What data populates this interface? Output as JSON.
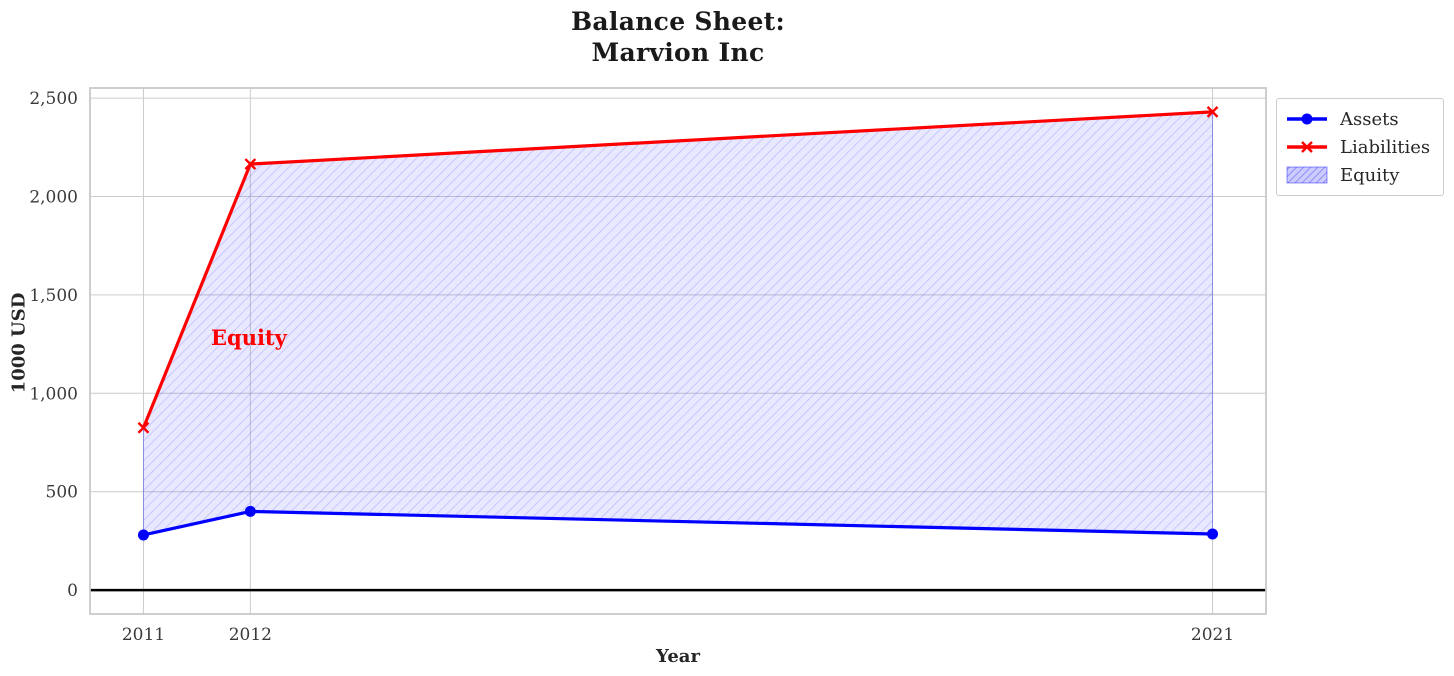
{
  "figure": {
    "title_lines": [
      "Balance Sheet:",
      "Marvion Inc"
    ]
  },
  "annotation": {
    "text": "Equity",
    "color": "#ff0000"
  },
  "chart_data": {
    "type": "line",
    "title": "Balance Sheet: Marvion Inc",
    "xlabel": "Year",
    "ylabel": "1000 USD",
    "x": [
      2011,
      2012,
      2021
    ],
    "x_tick_labels": [
      "2011",
      "2012",
      "2021"
    ],
    "y_ticks": [
      0,
      500,
      1000,
      1500,
      2000,
      2500
    ],
    "y_tick_labels": [
      "0",
      "500",
      "1,000",
      "1,500",
      "2,000",
      "2,500"
    ],
    "series": [
      {
        "name": "Assets",
        "color": "#0000ff",
        "marker": "circle",
        "values": [
          280,
          400,
          285
        ]
      },
      {
        "name": "Liabilities",
        "color": "#ff0000",
        "marker": "x",
        "values": [
          825,
          2165,
          2430
        ]
      }
    ],
    "fill_between": {
      "label": "Equity",
      "between": [
        "Assets",
        "Liabilities"
      ],
      "fill_color": "rgba(0,0,255,0.09)",
      "hatch": "///",
      "hatch_color": "rgba(0,0,255,0.20)",
      "edge_color": "rgba(0,0,255,0.28)"
    },
    "xlim": [
      2010.5,
      2021.5
    ],
    "ylim": [
      -121.5,
      2551.5
    ],
    "grid": true,
    "zero_line": true,
    "legend_position": "upper-right-outside",
    "colors": {
      "grid": "#cccccc",
      "spine": "#c9c9c9",
      "tick_text": "#3a3a3a",
      "zero_line": "#000000"
    }
  }
}
